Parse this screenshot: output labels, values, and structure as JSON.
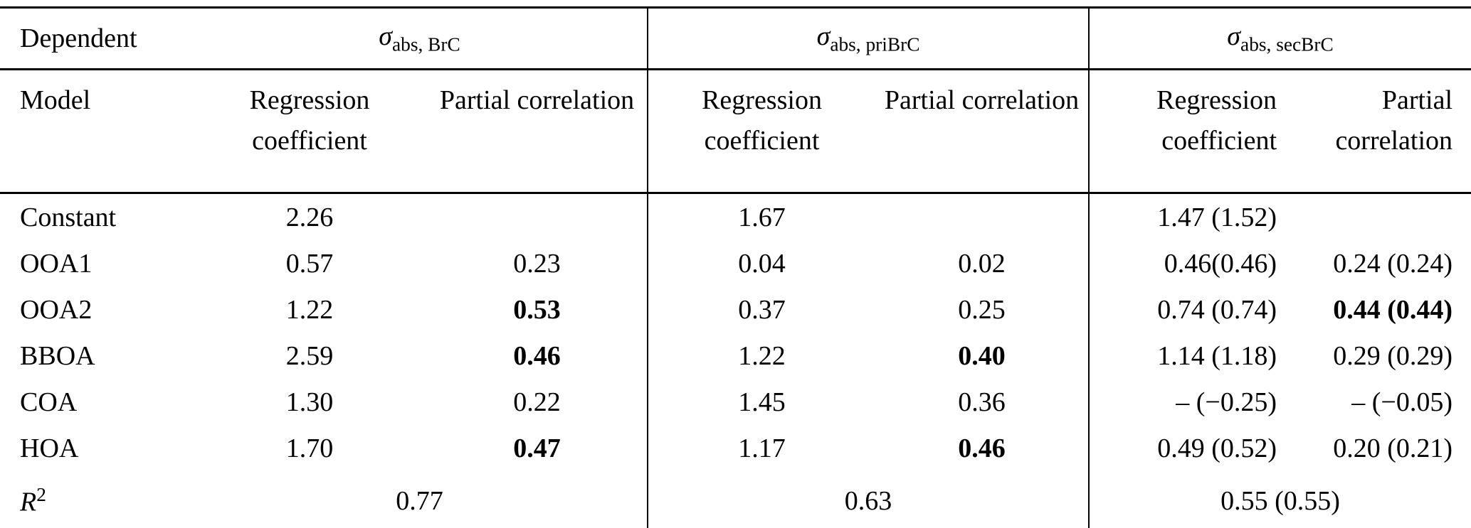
{
  "header": {
    "dependent_label": "Dependent",
    "model_label": "Model",
    "groups": [
      {
        "sigma": "σ",
        "sub": "abs, BrC"
      },
      {
        "sigma": "σ",
        "sub": "abs, priBrC"
      },
      {
        "sigma": "σ",
        "sub": "abs, secBrC"
      }
    ],
    "regression_label": "Regression coefficient",
    "partial_label": "Partial correlation"
  },
  "rows": [
    {
      "model": "Constant",
      "cells": [
        "2.26",
        "",
        "1.67",
        "",
        "1.47 (1.52)",
        ""
      ]
    },
    {
      "model": "OOA1",
      "cells": [
        "0.57",
        "0.23",
        "0.04",
        "0.02",
        "0.46(0.46)",
        "0.24 (0.24)"
      ]
    },
    {
      "model": "OOA2",
      "cells": [
        "1.22",
        "0.53",
        "0.37",
        "0.25",
        "0.74 (0.74)",
        "0.44 (0.44)"
      ]
    },
    {
      "model": "BBOA",
      "cells": [
        "2.59",
        "0.46",
        "1.22",
        "0.40",
        "1.14 (1.18)",
        "0.29 (0.29)"
      ]
    },
    {
      "model": "COA",
      "cells": [
        "1.30",
        "0.22",
        "1.45",
        "0.36",
        "– (−0.25)",
        "– (−0.05)"
      ]
    },
    {
      "model": "HOA",
      "cells": [
        "1.70",
        "0.47",
        "1.17",
        "0.46",
        "0.49 (0.52)",
        "0.20 (0.21)"
      ]
    }
  ],
  "footer": {
    "r_label": "R",
    "r_sup": "2",
    "values": [
      "0.77",
      "0.63",
      "0.55 (0.55)"
    ]
  }
}
